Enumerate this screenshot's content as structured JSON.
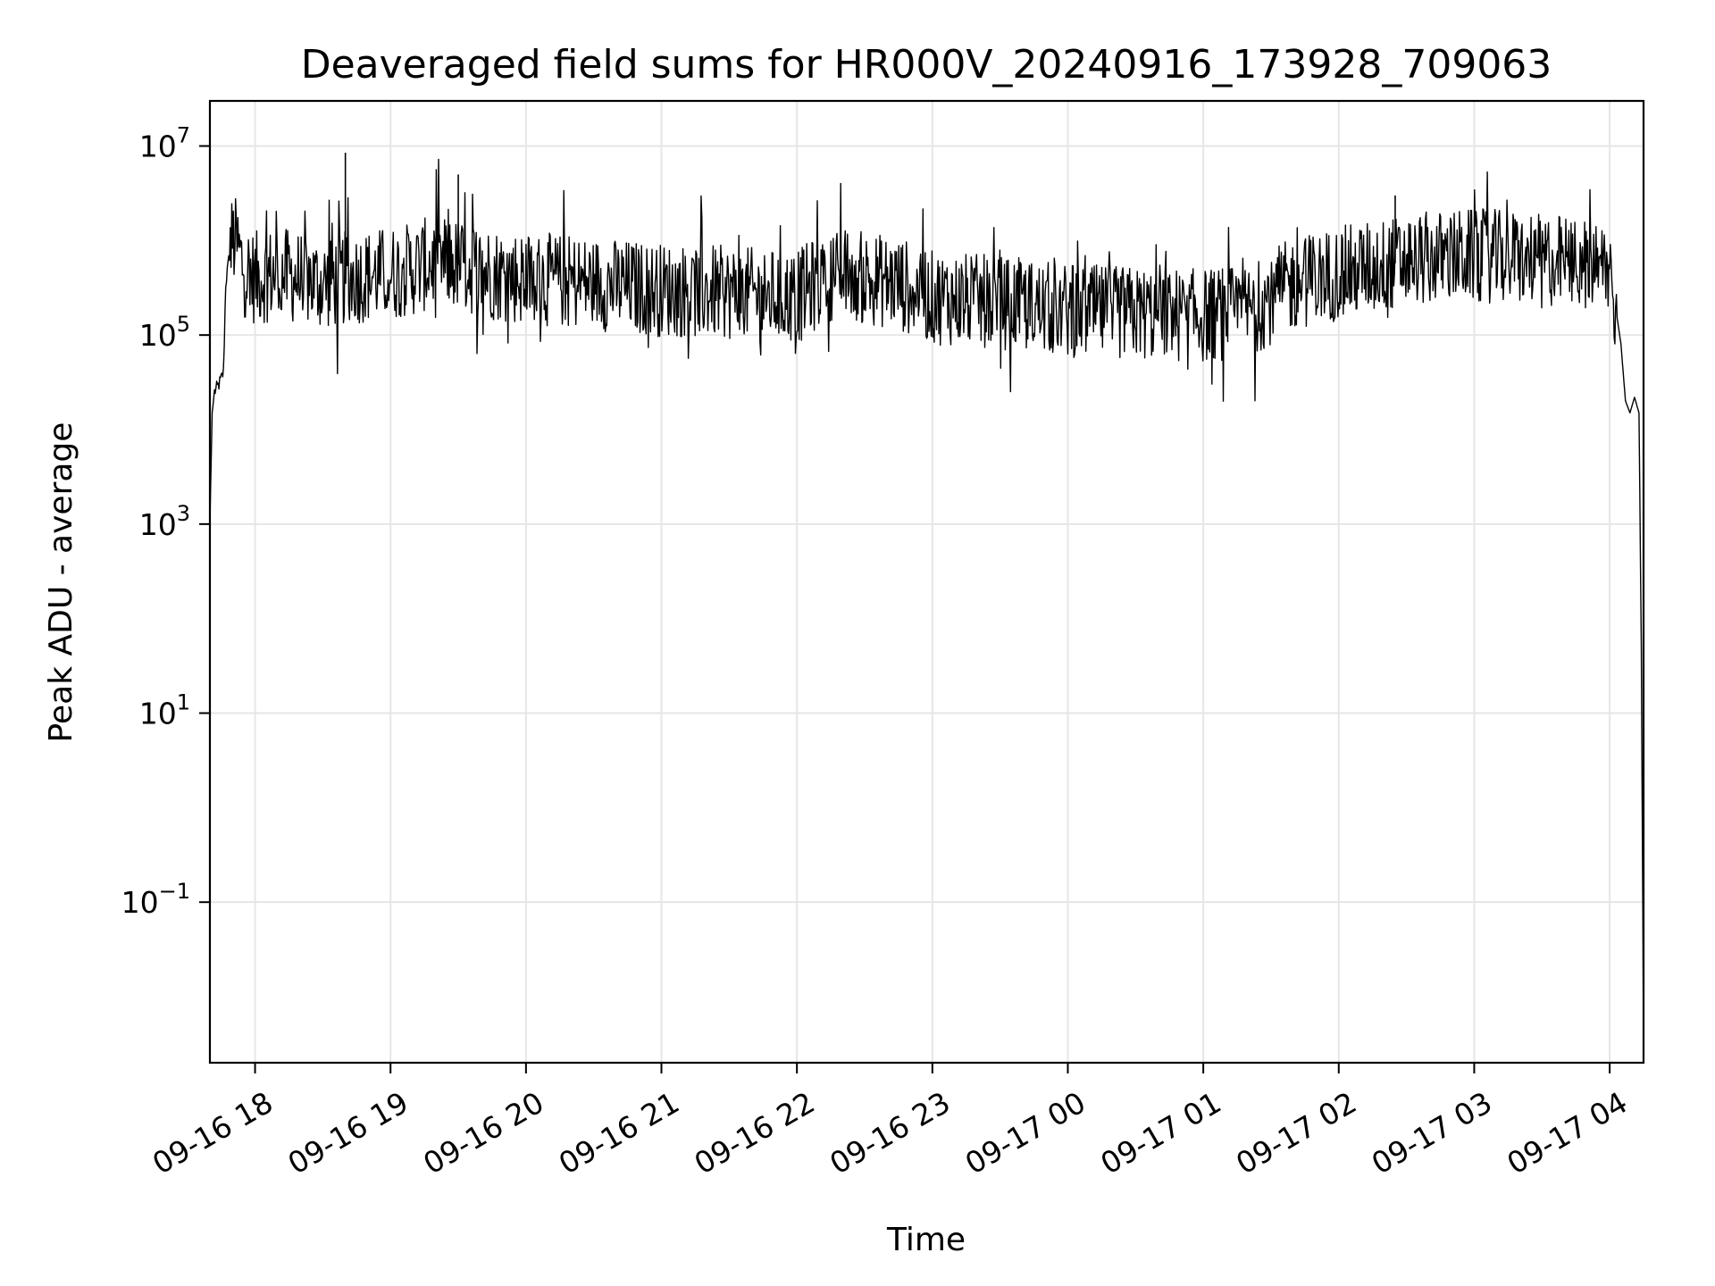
{
  "chart_data": {
    "type": "line",
    "title": "Deaveraged field sums for HR000V_20240916_173928_709063",
    "xlabel": "Time",
    "ylabel": "Peak ADU - average",
    "yscale": "log",
    "ylim": [
      0.002,
      30000000
    ],
    "xlim": [
      "2024-09-16 17:40",
      "2024-09-17 04:15"
    ],
    "grid": true,
    "line_color": "#000000",
    "x_ticks": [
      {
        "label": "09-16 18",
        "time": "2024-09-16 18:00"
      },
      {
        "label": "09-16 19",
        "time": "2024-09-16 19:00"
      },
      {
        "label": "09-16 20",
        "time": "2024-09-16 20:00"
      },
      {
        "label": "09-16 21",
        "time": "2024-09-16 21:00"
      },
      {
        "label": "09-16 22",
        "time": "2024-09-16 22:00"
      },
      {
        "label": "09-16 23",
        "time": "2024-09-16 23:00"
      },
      {
        "label": "09-17 00",
        "time": "2024-09-17 00:00"
      },
      {
        "label": "09-17 01",
        "time": "2024-09-17 01:00"
      },
      {
        "label": "09-17 02",
        "time": "2024-09-17 02:00"
      },
      {
        "label": "09-17 03",
        "time": "2024-09-17 03:00"
      },
      {
        "label": "09-17 04",
        "time": "2024-09-17 04:00"
      }
    ],
    "y_ticks": [
      {
        "base": "10",
        "exp": "7",
        "value": 10000000
      },
      {
        "base": "10",
        "exp": "5",
        "value": 100000
      },
      {
        "base": "10",
        "exp": "3",
        "value": 1000
      },
      {
        "base": "10",
        "exp": "1",
        "value": 10
      },
      {
        "base": "10",
        "exp": "−1",
        "value": 0.1
      }
    ],
    "series": [
      {
        "x": [
          "2024-09-16 17:40",
          "2024-09-16 17:41",
          "2024-09-16 17:42",
          "2024-09-16 17:44",
          "2024-09-16 17:46",
          "2024-09-16 17:47",
          "2024-09-16 17:49",
          "2024-09-16 17:50",
          "2024-09-16 17:52",
          "2024-09-16 17:55",
          "2024-09-16 18:00",
          "2024-09-16 18:10",
          "2024-09-16 18:20",
          "2024-09-16 18:30",
          "2024-09-16 18:40",
          "2024-09-16 18:50",
          "2024-09-16 19:00",
          "2024-09-16 19:10",
          "2024-09-16 19:20",
          "2024-09-16 19:30",
          "2024-09-16 19:45",
          "2024-09-16 20:00",
          "2024-09-16 20:30",
          "2024-09-16 21:00",
          "2024-09-16 21:30",
          "2024-09-16 22:00",
          "2024-09-16 22:15",
          "2024-09-16 22:30",
          "2024-09-16 22:45",
          "2024-09-16 23:00",
          "2024-09-16 23:30",
          "2024-09-17 00:00",
          "2024-09-17 00:30",
          "2024-09-17 01:00",
          "2024-09-17 01:20",
          "2024-09-17 01:40",
          "2024-09-17 02:00",
          "2024-09-17 02:20",
          "2024-09-17 02:40",
          "2024-09-17 03:00",
          "2024-09-17 03:20",
          "2024-09-17 03:40",
          "2024-09-17 04:00",
          "2024-09-17 04:02",
          "2024-09-17 04:05",
          "2024-09-17 04:07",
          "2024-09-17 04:09",
          "2024-09-17 04:11",
          "2024-09-17 04:13",
          "2024-09-17 04:14",
          "2024-09-17 04:15"
        ],
        "y": [
          1000,
          15000,
          25000,
          30000,
          40000,
          350000,
          800000,
          1000000,
          900000,
          500000,
          400000,
          450000,
          400000,
          350000,
          400000,
          420000,
          450000,
          500000,
          600000,
          550000,
          450000,
          400000,
          350000,
          300000,
          280000,
          250000,
          450000,
          400000,
          350000,
          250000,
          220000,
          180000,
          170000,
          160000,
          180000,
          350000,
          450000,
          550000,
          650000,
          700000,
          650000,
          600000,
          500000,
          250000,
          80000,
          20000,
          15000,
          22000,
          15000,
          50,
          0.003
        ]
      }
    ],
    "annotations": [
      {
        "time": "2024-09-16 18:40",
        "value": 8500000
      },
      {
        "time": "2024-09-16 19:30",
        "value": 5000000
      },
      {
        "time": "2024-09-17 02:25",
        "value": 3000000
      }
    ]
  }
}
